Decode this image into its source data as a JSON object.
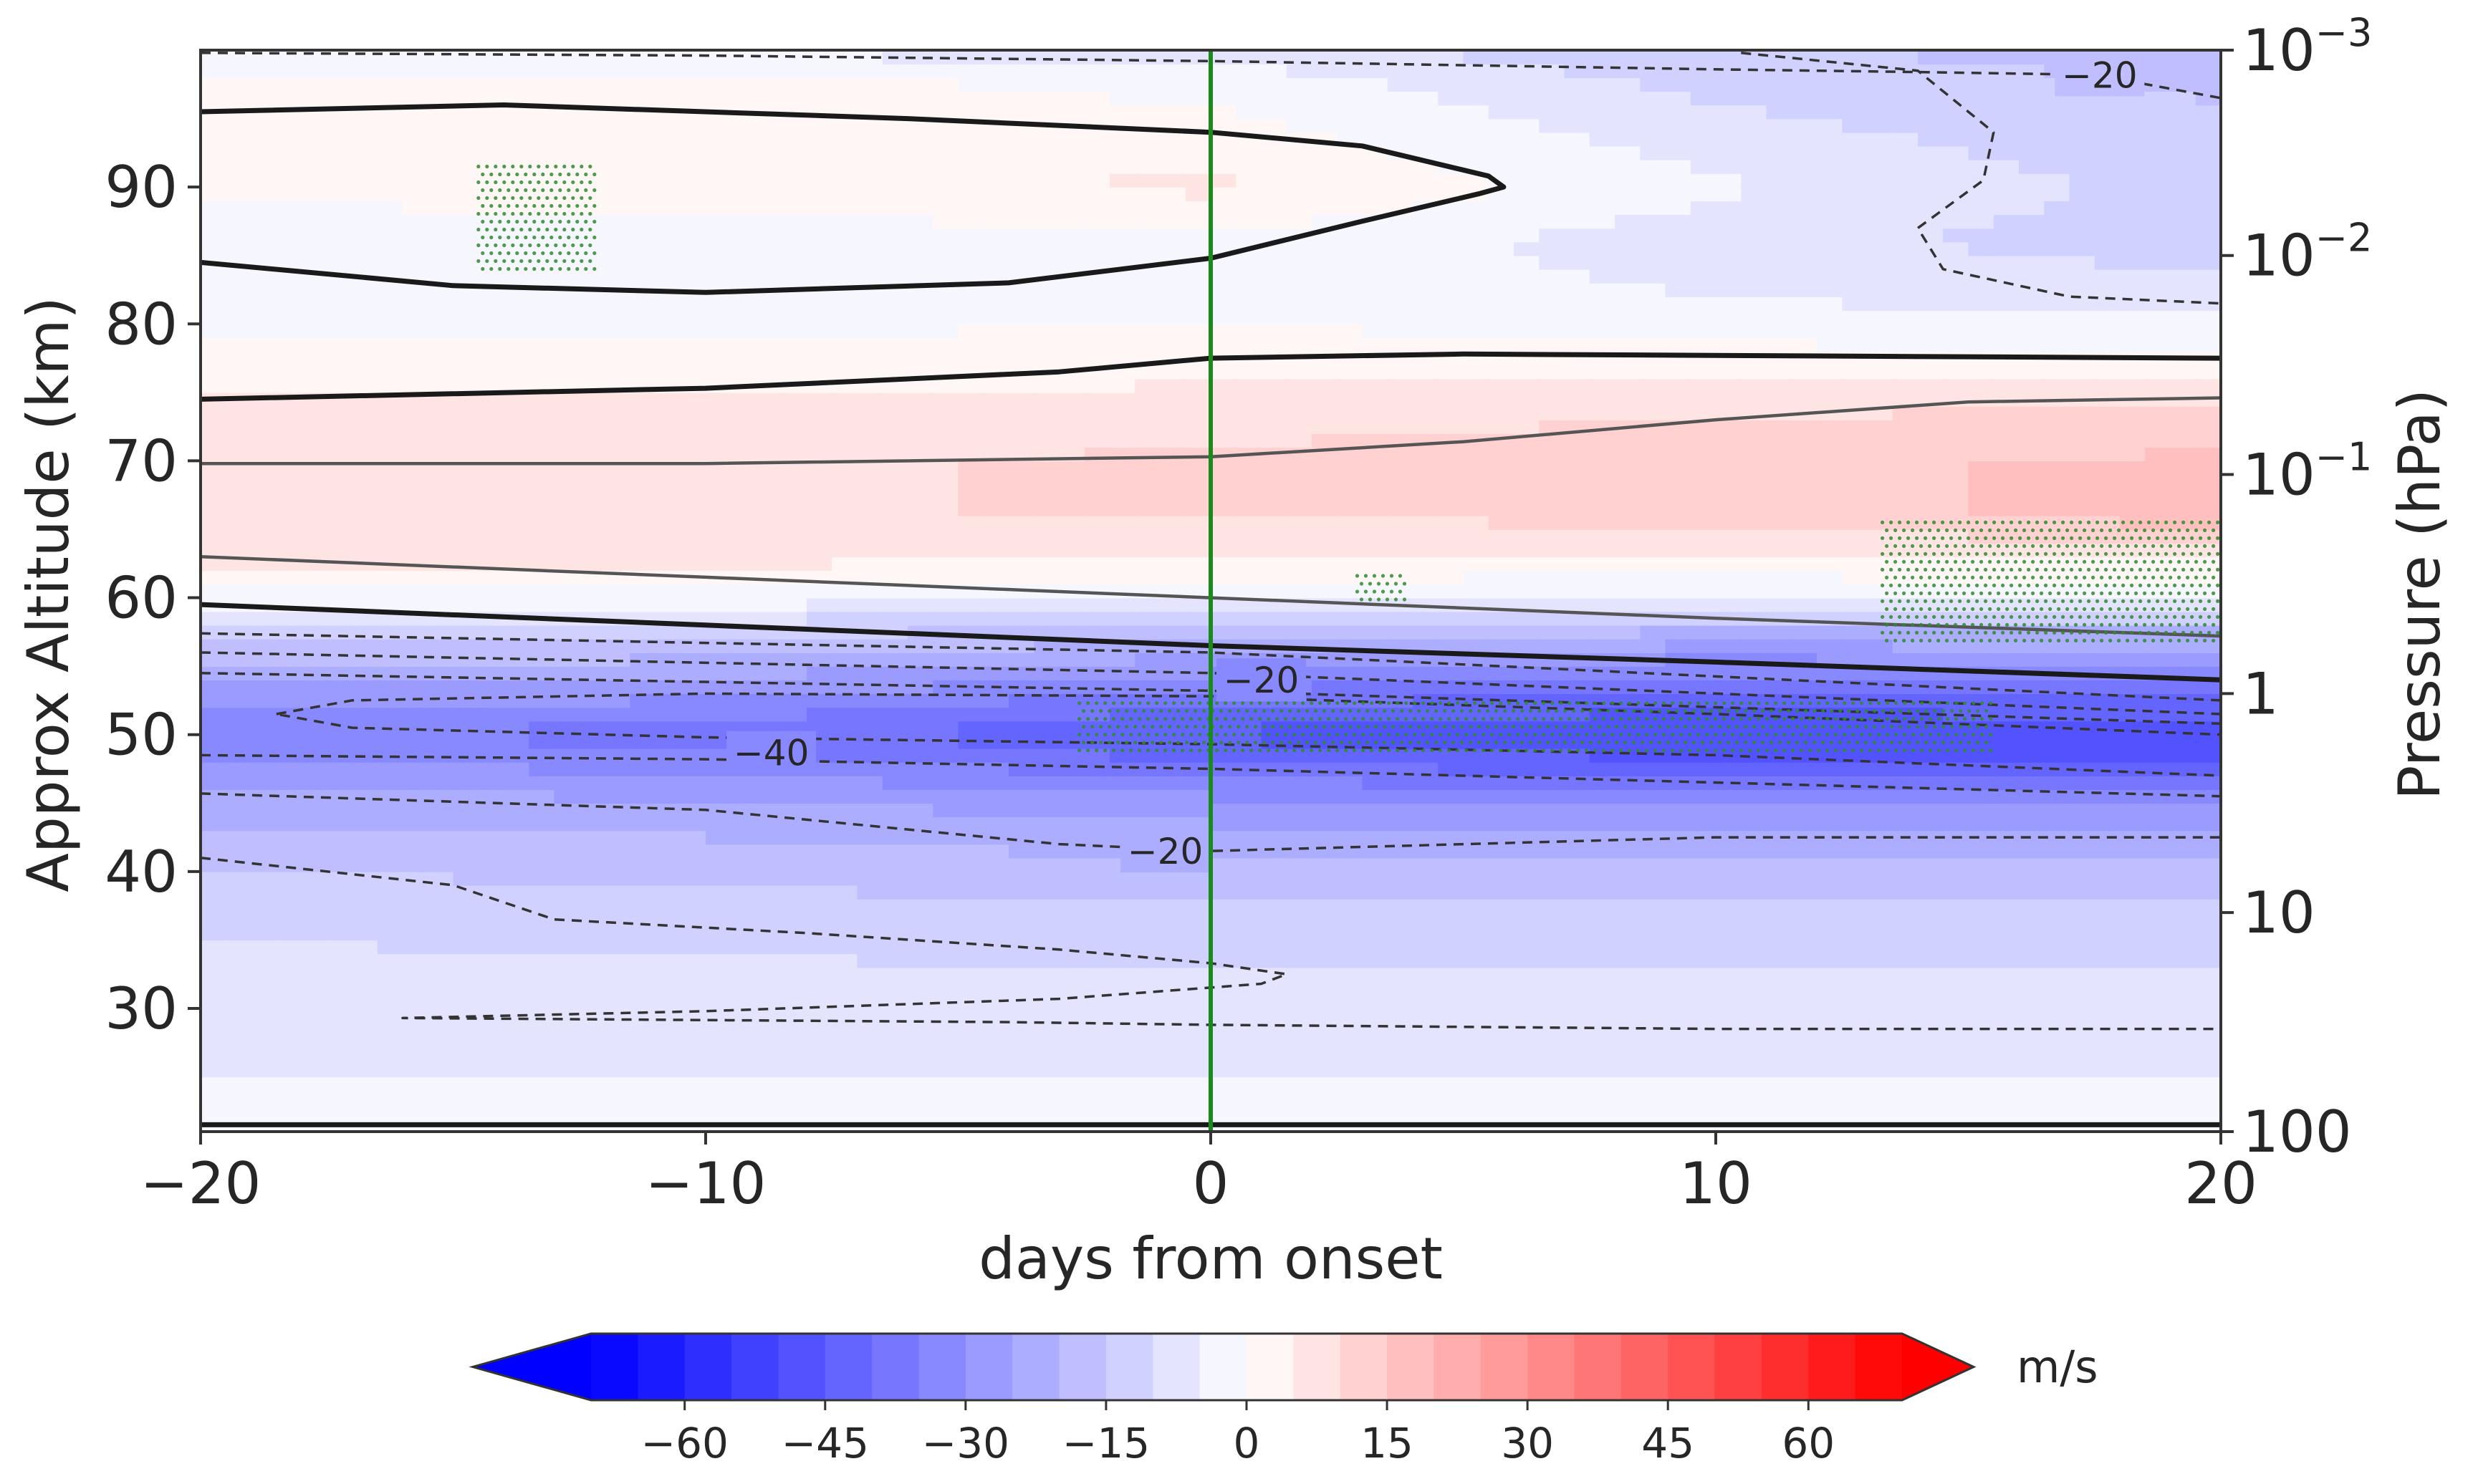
{
  "chart_data": {
    "type": "heatmap",
    "subtype": "filled contour with line contours and stippling",
    "xlabel": "days from onset",
    "ylabel_left": "Approx Altitude (km)",
    "ylabel_right": "Pressure (hPa)",
    "xlim": [
      -20,
      20
    ],
    "ylim_altitude_km": [
      21,
      100
    ],
    "x_ticks": [
      {
        "value": -20,
        "label": "−20"
      },
      {
        "value": -10,
        "label": "−10"
      },
      {
        "value": 0,
        "label": "0"
      },
      {
        "value": 10,
        "label": "10"
      },
      {
        "value": 20,
        "label": "20"
      }
    ],
    "y_ticks_left": [
      {
        "value": 30,
        "label": "30"
      },
      {
        "value": 40,
        "label": "40"
      },
      {
        "value": 50,
        "label": "50"
      },
      {
        "value": 60,
        "label": "60"
      },
      {
        "value": 70,
        "label": "70"
      },
      {
        "value": 80,
        "label": "80"
      },
      {
        "value": 90,
        "label": "90"
      }
    ],
    "y_ticks_right": [
      {
        "altitude": 21.0,
        "base": "100",
        "exp": ""
      },
      {
        "altitude": 37.0,
        "base": "10",
        "exp": ""
      },
      {
        "altitude": 53.0,
        "base": "1",
        "exp": ""
      },
      {
        "altitude": 69.0,
        "base": "10",
        "exp": "−1"
      },
      {
        "altitude": 85.0,
        "base": "10",
        "exp": "−2"
      },
      {
        "altitude": 101.0,
        "base": "10",
        "exp": "−3"
      }
    ],
    "onset_line_day": 0,
    "onset_line_color": "#1a8a1a",
    "colorbar": {
      "unit": "m/s",
      "levels": [
        -70,
        -65,
        -60,
        -55,
        -50,
        -45,
        -40,
        -35,
        -30,
        -25,
        -20,
        -15,
        -10,
        -5,
        0,
        5,
        10,
        15,
        20,
        25,
        30,
        35,
        40,
        45,
        50,
        55,
        60,
        65,
        70
      ],
      "extend": "both",
      "tick_values": [
        -60,
        -45,
        -30,
        -15,
        0,
        15,
        30,
        45,
        60
      ],
      "tick_labels": [
        "−60",
        "−45",
        "−30",
        "−15",
        "0",
        "15",
        "30",
        "45",
        "60"
      ],
      "cmap": "bwr",
      "neg_color": "#0000ff",
      "pos_color": "#ff0000"
    },
    "wind_profile": {
      "days": [
        -20,
        -10,
        0,
        10,
        20
      ],
      "altitudes_km": [
        21,
        25,
        30,
        35,
        40,
        45,
        48,
        50,
        52,
        55,
        58,
        60,
        63,
        66,
        70,
        74,
        78,
        82,
        86,
        90,
        94,
        98,
        100
      ],
      "values_ms": [
        [
          -3,
          -5,
          -7,
          -10,
          -15,
          -23,
          -30,
          -35,
          -30,
          -20,
          -10,
          -2,
          8,
          10,
          9,
          6,
          1,
          -3,
          -4,
          2,
          4,
          1,
          -6
        ],
        [
          -3,
          -5,
          -7,
          -11,
          -16,
          -24,
          -32,
          -37,
          -32,
          -22,
          -12,
          -2,
          7,
          10,
          9,
          6,
          1,
          -3,
          -4,
          3,
          4,
          1,
          -6
        ],
        [
          -3,
          -5,
          -7,
          -12,
          -18,
          -28,
          -40,
          -46,
          -40,
          -28,
          -15,
          -4,
          5,
          10,
          11,
          7,
          2,
          -2,
          -1,
          6,
          2,
          -2,
          -8
        ],
        [
          -3,
          -5,
          -7,
          -12,
          -18,
          -30,
          -45,
          -50,
          -45,
          -33,
          -18,
          -5,
          4,
          12,
          14,
          9,
          1,
          -5,
          -8,
          -4,
          -8,
          -12,
          -14
        ],
        [
          -3,
          -5,
          -7,
          -12,
          -18,
          -30,
          -45,
          -48,
          -42,
          -30,
          -18,
          -3,
          6,
          18,
          16,
          10,
          0,
          -8,
          -13,
          -12,
          -14,
          -16,
          -18
        ]
      ]
    },
    "contour_labels": [
      {
        "text": "−20",
        "day": 17.6,
        "alt": 98.2
      },
      {
        "text": "−20",
        "day": 1.0,
        "alt": 54.0
      },
      {
        "text": "−40",
        "day": -8.7,
        "alt": 48.7
      },
      {
        "text": "−20",
        "day": -0.9,
        "alt": 41.5
      }
    ],
    "zero_contours": [
      {
        "name": "upper-westerly-lobe",
        "style": "solid",
        "points": [
          [
            -20,
            95.5
          ],
          [
            -14,
            96
          ],
          [
            -6,
            95
          ],
          [
            0,
            94
          ],
          [
            3,
            93
          ],
          [
            5.5,
            90.8
          ],
          [
            5.8,
            90
          ],
          [
            5.3,
            89.5
          ],
          [
            3,
            87.5
          ],
          [
            0,
            84.8
          ],
          [
            -4,
            83
          ],
          [
            -10,
            82.3
          ],
          [
            -15,
            82.8
          ],
          [
            -20,
            84.5
          ]
        ]
      },
      {
        "name": "mid-westerly-top",
        "style": "solid",
        "points": [
          [
            -20,
            74.5
          ],
          [
            -10,
            75.3
          ],
          [
            -3,
            76.5
          ],
          [
            0,
            77.5
          ],
          [
            5,
            77.8
          ],
          [
            20,
            77.5
          ]
        ]
      },
      {
        "name": "stratopause-zero",
        "style": "solid",
        "points": [
          [
            -20,
            59.5
          ],
          [
            -10,
            58
          ],
          [
            0,
            56.5
          ],
          [
            10,
            55.3
          ],
          [
            20,
            54
          ]
        ]
      },
      {
        "name": "ground-zero",
        "style": "solid",
        "points": [
          [
            -20,
            21.5
          ],
          [
            20,
            21.5
          ]
        ]
      }
    ],
    "positive_contours": [
      {
        "name": "plus-10-top",
        "style": "solid-thin",
        "points": [
          [
            -20,
            69.8
          ],
          [
            -10,
            69.8
          ],
          [
            0,
            70.3
          ],
          [
            5,
            71.4
          ],
          [
            10,
            73
          ],
          [
            15,
            74.3
          ],
          [
            20,
            74.6
          ]
        ]
      },
      {
        "name": "plus-10-bottom",
        "style": "solid-thin",
        "points": [
          [
            -20,
            63
          ],
          [
            -10,
            61.5
          ],
          [
            0,
            60
          ],
          [
            10,
            58.5
          ],
          [
            20,
            57.2
          ]
        ]
      }
    ],
    "negative_contours": [
      {
        "name": "minus-10-top-margin",
        "style": "dashed",
        "points": [
          [
            -20,
            99.8
          ],
          [
            -10,
            99.6
          ],
          [
            0,
            99.2
          ],
          [
            10,
            98.6
          ],
          [
            14,
            98.4
          ],
          [
            17.5,
            98.2
          ],
          [
            20,
            96.5
          ]
        ]
      },
      {
        "name": "minus-20-upper-lobe",
        "style": "dashed",
        "points": [
          [
            10.5,
            99.8
          ],
          [
            14,
            98.5
          ],
          [
            15.5,
            94
          ],
          [
            15.3,
            90.5
          ],
          [
            14,
            87
          ],
          [
            14.5,
            84
          ],
          [
            17,
            82
          ],
          [
            20,
            81.5
          ]
        ]
      },
      {
        "name": "minus-10-a",
        "style": "dashed",
        "points": [
          [
            -20,
            57.4
          ],
          [
            0,
            56
          ],
          [
            20,
            52.5
          ]
        ]
      },
      {
        "name": "minus-20-a",
        "style": "dashed",
        "points": [
          [
            -20,
            56
          ],
          [
            0,
            54.5
          ],
          [
            20,
            51.5
          ]
        ]
      },
      {
        "name": "minus-30-a",
        "style": "dashed",
        "points": [
          [
            -20,
            54.5
          ],
          [
            0,
            53.2
          ],
          [
            20,
            50.8
          ]
        ]
      },
      {
        "name": "minus-40-ring",
        "style": "dashed",
        "points": [
          [
            -18.5,
            51.5
          ],
          [
            -17,
            52.5
          ],
          [
            -10,
            53
          ],
          [
            0,
            52.8
          ],
          [
            10,
            51.5
          ],
          [
            20,
            50
          ],
          [
            20,
            47
          ],
          [
            10,
            48.5
          ],
          [
            0,
            49.3
          ],
          [
            -10,
            49.8
          ],
          [
            -17,
            50.5
          ],
          [
            -18.5,
            51.5
          ]
        ]
      },
      {
        "name": "minus-30-b",
        "style": "dashed",
        "points": [
          [
            -20,
            48.5
          ],
          [
            -10,
            48.2
          ],
          [
            0,
            47.5
          ],
          [
            10,
            46.5
          ],
          [
            20,
            45.5
          ]
        ]
      },
      {
        "name": "minus-20-b",
        "style": "dashed",
        "points": [
          [
            -20,
            45.7
          ],
          [
            -10,
            44.5
          ],
          [
            -3,
            42
          ],
          [
            0,
            41.5
          ],
          [
            10,
            42.5
          ],
          [
            20,
            42.5
          ]
        ]
      },
      {
        "name": "minus-10-b",
        "style": "dashed",
        "points": [
          [
            -20,
            41
          ],
          [
            -15,
            39
          ],
          [
            -13,
            36.5
          ],
          [
            -8,
            35.5
          ],
          [
            -3,
            34.3
          ],
          [
            0,
            33.3
          ],
          [
            1.5,
            32.5
          ],
          [
            1,
            31.8
          ],
          [
            -3,
            30.7
          ],
          [
            -10,
            29.8
          ],
          [
            -16,
            29.3
          ],
          [
            -4,
            29
          ],
          [
            0,
            28.8
          ],
          [
            10,
            28.5
          ],
          [
            20,
            28.5
          ]
        ]
      }
    ],
    "stipple_regions": [
      {
        "day_min": -14.5,
        "day_max": -12.2,
        "alt_min": 83.5,
        "alt_max": 91.5
      },
      {
        "day_min": -2.6,
        "day_max": 15.5,
        "alt_min": 48.5,
        "alt_max": 52.3
      },
      {
        "day_min": 2.9,
        "day_max": 3.9,
        "alt_min": 59.8,
        "alt_max": 61.6
      },
      {
        "day_min": 13.3,
        "day_max": 20,
        "alt_min": 56.5,
        "alt_max": 65.5
      }
    ]
  }
}
